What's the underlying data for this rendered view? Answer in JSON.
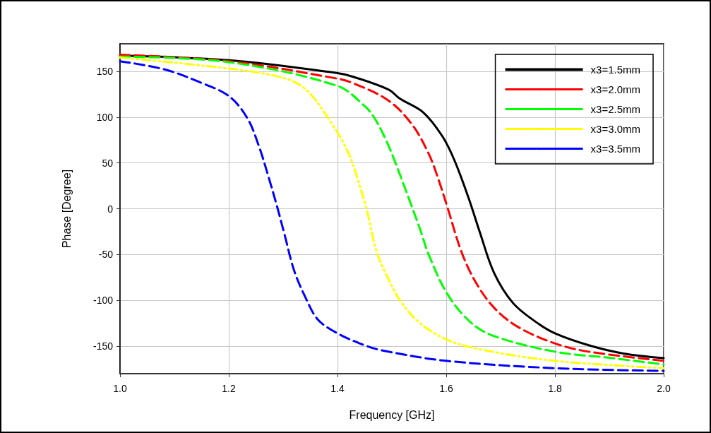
{
  "chart_data": {
    "type": "line",
    "xlabel": "Frequency [GHz]",
    "ylabel": "Phase [Degree]",
    "xlim": [
      1.0,
      2.0
    ],
    "xticks": [
      {
        "value": 1.0,
        "label": "1.0"
      },
      {
        "value": 1.2,
        "label": "1.2"
      },
      {
        "value": 1.4,
        "label": "1.4"
      },
      {
        "value": 1.6,
        "label": "1.6"
      },
      {
        "value": 1.8,
        "label": "1.8"
      },
      {
        "value": 2.0,
        "label": "2.0"
      }
    ],
    "ylim": [
      -180,
      180
    ],
    "yticks": [
      -150,
      -100,
      -50,
      0,
      50,
      100,
      150
    ],
    "grid": true,
    "legend": "top right",
    "marker": "none",
    "series": [
      {
        "name": "x3=1.5mm",
        "color": "#000000",
        "line_style": "solid",
        "x": [
          1.0,
          1.2,
          1.4,
          1.429,
          1.494,
          1.515,
          1.558,
          1.593,
          1.615,
          1.641,
          1.662,
          1.688,
          1.723,
          1.766,
          1.8,
          1.862,
          1.926,
          2.0
        ],
        "values": [
          167,
          162,
          148,
          144,
          130,
          120,
          105,
          79,
          53,
          12,
          -26,
          -70,
          -103,
          -124,
          -136,
          -149,
          -158,
          -163
        ]
      },
      {
        "name": "x3=2.0mm",
        "color": "#ff0000",
        "line_style": "dashed",
        "x": [
          1.0,
          1.2,
          1.4,
          1.429,
          1.494,
          1.537,
          1.567,
          1.584,
          1.602,
          1.628,
          1.654,
          1.688,
          1.732,
          1.8,
          1.862,
          2.0
        ],
        "values": [
          168,
          161,
          142,
          137,
          118,
          92,
          61,
          35,
          2,
          -47,
          -80,
          -108,
          -129,
          -147,
          -156,
          -166
        ]
      },
      {
        "name": "x3=2.5mm",
        "color": "#00ff00",
        "line_style": "dashed",
        "x": [
          1.0,
          1.2,
          1.4,
          1.45,
          1.468,
          1.49,
          1.506,
          1.532,
          1.554,
          1.567,
          1.602,
          1.645,
          1.688,
          1.8,
          1.905,
          2.0
        ],
        "values": [
          166,
          160,
          134,
          112,
          99,
          74,
          51,
          10,
          -26,
          -49,
          -93,
          -124,
          -139,
          -156,
          -163,
          -170
        ]
      },
      {
        "name": "x3=3.0mm",
        "color": "#ffff00",
        "line_style": "dashdot",
        "x": [
          1.0,
          1.2,
          1.299,
          1.342,
          1.385,
          1.42,
          1.442,
          1.455,
          1.472,
          1.494,
          1.515,
          1.55,
          1.602,
          1.667,
          1.8,
          2.0
        ],
        "values": [
          165,
          153,
          143,
          130,
          97,
          61,
          23,
          -4,
          -47,
          -77,
          -100,
          -124,
          -143,
          -154,
          -166,
          -174
        ]
      },
      {
        "name": "x3=3.5mm",
        "color": "#0000ff",
        "line_style": "dashed",
        "x": [
          1.0,
          1.082,
          1.147,
          1.2,
          1.234,
          1.255,
          1.273,
          1.29,
          1.303,
          1.32,
          1.342,
          1.364,
          1.4,
          1.45,
          1.485,
          1.6,
          1.8,
          2.0
        ],
        "values": [
          161,
          152,
          138,
          123,
          99,
          69,
          35,
          0,
          -29,
          -67,
          -98,
          -121,
          -136,
          -149,
          -155,
          -166,
          -174,
          -177
        ]
      }
    ]
  }
}
